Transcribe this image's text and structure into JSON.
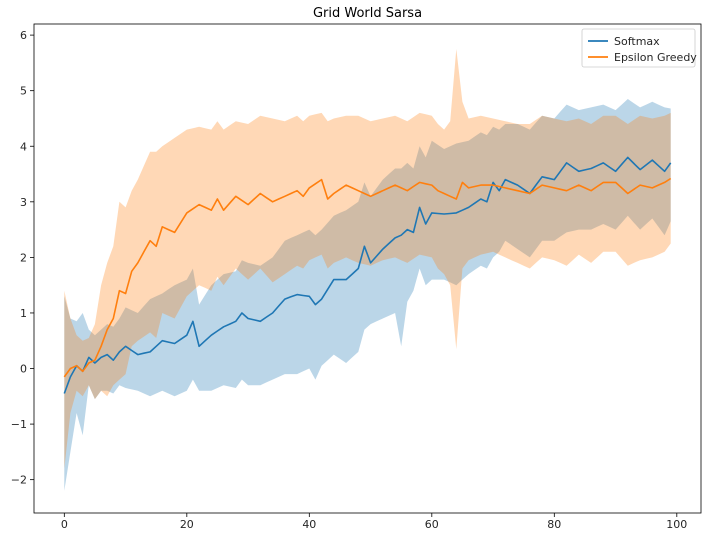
{
  "chart_data": {
    "type": "line",
    "title": "Grid World Sarsa",
    "xlabel": "",
    "ylabel": "",
    "xlim": [
      -4.95,
      103.95
    ],
    "ylim": [
      -2.6,
      6.2
    ],
    "xticks": [
      0,
      20,
      40,
      60,
      80,
      100
    ],
    "xtick_labels": [
      "0",
      "20",
      "40",
      "60",
      "80",
      "100"
    ],
    "yticks": [
      -2,
      -1,
      0,
      1,
      2,
      3,
      4,
      5,
      6
    ],
    "ytick_labels": [
      "−2",
      "−1",
      "0",
      "1",
      "2",
      "3",
      "4",
      "5",
      "6"
    ],
    "grid": false,
    "legend": "top-right",
    "series": [
      {
        "name": "Softmax",
        "color": "#1f77b4",
        "band_alpha": 0.3,
        "anchors": [
          [
            0,
            -0.45,
            1.3,
            -2.2
          ],
          [
            1,
            -0.15,
            0.9,
            -1.5
          ],
          [
            2,
            0.05,
            0.85,
            -0.8
          ],
          [
            3,
            -0.05,
            1.0,
            -1.2
          ],
          [
            4,
            0.2,
            0.7,
            -0.3
          ],
          [
            5,
            0.1,
            0.6,
            -0.55
          ],
          [
            6,
            0.2,
            0.7,
            -0.4
          ],
          [
            7,
            0.25,
            0.8,
            -0.4
          ],
          [
            8,
            0.15,
            0.75,
            -0.45
          ],
          [
            9,
            0.3,
            0.9,
            -0.3
          ],
          [
            10,
            0.4,
            1.1,
            -0.35
          ],
          [
            12,
            0.25,
            1.0,
            -0.4
          ],
          [
            14,
            0.3,
            1.25,
            -0.5
          ],
          [
            16,
            0.5,
            1.35,
            -0.4
          ],
          [
            18,
            0.45,
            1.5,
            -0.5
          ],
          [
            20,
            0.6,
            1.6,
            -0.4
          ],
          [
            21,
            0.85,
            1.8,
            -0.2
          ],
          [
            22,
            0.4,
            1.15,
            -0.4
          ],
          [
            24,
            0.6,
            1.5,
            -0.4
          ],
          [
            26,
            0.75,
            1.7,
            -0.3
          ],
          [
            28,
            0.85,
            1.75,
            -0.35
          ],
          [
            29,
            1.0,
            1.95,
            -0.2
          ],
          [
            30,
            0.9,
            1.9,
            -0.3
          ],
          [
            32,
            0.85,
            1.85,
            -0.3
          ],
          [
            34,
            1.0,
            2.0,
            -0.2
          ],
          [
            36,
            1.25,
            2.3,
            -0.1
          ],
          [
            38,
            1.33,
            2.4,
            -0.1
          ],
          [
            40,
            1.3,
            2.5,
            0.0
          ],
          [
            41,
            1.15,
            2.4,
            -0.2
          ],
          [
            42,
            1.25,
            2.5,
            0.05
          ],
          [
            44,
            1.6,
            2.75,
            0.25
          ],
          [
            46,
            1.6,
            2.85,
            0.1
          ],
          [
            48,
            1.8,
            3.0,
            0.3
          ],
          [
            49,
            2.2,
            3.35,
            0.7
          ],
          [
            50,
            1.9,
            3.1,
            0.8
          ],
          [
            52,
            2.15,
            3.4,
            0.9
          ],
          [
            54,
            2.35,
            3.6,
            1.0
          ],
          [
            55,
            2.4,
            3.6,
            0.4
          ],
          [
            56,
            2.5,
            3.7,
            1.2
          ],
          [
            57,
            2.45,
            3.6,
            1.4
          ],
          [
            58,
            2.9,
            4.0,
            1.8
          ],
          [
            59,
            2.6,
            3.8,
            1.5
          ],
          [
            60,
            2.8,
            4.1,
            1.6
          ],
          [
            62,
            2.78,
            3.95,
            1.6
          ],
          [
            64,
            2.8,
            4.05,
            1.5
          ],
          [
            66,
            2.9,
            4.1,
            1.7
          ],
          [
            68,
            3.05,
            4.25,
            1.85
          ],
          [
            69,
            3.0,
            4.2,
            1.8
          ],
          [
            70,
            3.35,
            4.35,
            2.0
          ],
          [
            71,
            3.2,
            4.3,
            2.1
          ],
          [
            72,
            3.4,
            4.4,
            2.3
          ],
          [
            74,
            3.3,
            4.4,
            2.15
          ],
          [
            76,
            3.15,
            4.3,
            2.0
          ],
          [
            78,
            3.45,
            4.55,
            2.3
          ],
          [
            80,
            3.4,
            4.5,
            2.3
          ],
          [
            82,
            3.7,
            4.75,
            2.45
          ],
          [
            84,
            3.55,
            4.65,
            2.5
          ],
          [
            86,
            3.6,
            4.7,
            2.5
          ],
          [
            88,
            3.7,
            4.75,
            2.6
          ],
          [
            90,
            3.55,
            4.65,
            2.5
          ],
          [
            92,
            3.8,
            4.85,
            2.75
          ],
          [
            94,
            3.58,
            4.7,
            2.5
          ],
          [
            96,
            3.75,
            4.8,
            2.7
          ],
          [
            98,
            3.55,
            4.7,
            2.4
          ],
          [
            99,
            3.7,
            4.68,
            2.65
          ]
        ]
      },
      {
        "name": "Epsilon Greedy",
        "color": "#ff7f0e",
        "band_alpha": 0.3,
        "anchors": [
          [
            0,
            -0.15,
            1.4,
            -1.8
          ],
          [
            1,
            0.0,
            0.9,
            -0.8
          ],
          [
            2,
            0.05,
            0.6,
            -0.4
          ],
          [
            3,
            -0.05,
            0.5,
            -0.5
          ],
          [
            4,
            0.1,
            0.55,
            -0.3
          ],
          [
            5,
            0.15,
            0.8,
            -0.55
          ],
          [
            6,
            0.4,
            1.5,
            -0.4
          ],
          [
            7,
            0.7,
            1.9,
            -0.5
          ],
          [
            8,
            0.9,
            2.2,
            -0.3
          ],
          [
            9,
            1.4,
            3.0,
            -0.2
          ],
          [
            10,
            1.35,
            2.9,
            -0.1
          ],
          [
            11,
            1.75,
            3.2,
            0.4
          ],
          [
            12,
            1.9,
            3.4,
            0.5
          ],
          [
            14,
            2.3,
            3.9,
            0.65
          ],
          [
            15,
            2.2,
            3.9,
            0.55
          ],
          [
            16,
            2.55,
            4.0,
            1.0
          ],
          [
            18,
            2.45,
            4.15,
            0.9
          ],
          [
            20,
            2.8,
            4.3,
            1.3
          ],
          [
            22,
            2.95,
            4.35,
            1.5
          ],
          [
            24,
            2.85,
            4.3,
            1.4
          ],
          [
            25,
            3.05,
            4.45,
            1.65
          ],
          [
            26,
            2.85,
            4.3,
            1.5
          ],
          [
            28,
            3.1,
            4.45,
            1.8
          ],
          [
            30,
            2.95,
            4.4,
            1.6
          ],
          [
            32,
            3.15,
            4.55,
            1.8
          ],
          [
            34,
            3.0,
            4.5,
            1.55
          ],
          [
            36,
            3.1,
            4.45,
            1.7
          ],
          [
            38,
            3.2,
            4.55,
            1.85
          ],
          [
            39,
            3.1,
            4.45,
            1.8
          ],
          [
            40,
            3.25,
            4.55,
            1.95
          ],
          [
            42,
            3.4,
            4.6,
            2.05
          ],
          [
            43,
            3.05,
            4.45,
            1.8
          ],
          [
            44,
            3.15,
            4.5,
            1.9
          ],
          [
            46,
            3.3,
            4.55,
            2.0
          ],
          [
            48,
            3.2,
            4.55,
            1.9
          ],
          [
            50,
            3.1,
            4.45,
            1.85
          ],
          [
            52,
            3.2,
            4.5,
            1.95
          ],
          [
            54,
            3.3,
            4.55,
            2.0
          ],
          [
            56,
            3.2,
            4.45,
            1.9
          ],
          [
            58,
            3.35,
            4.6,
            2.05
          ],
          [
            60,
            3.3,
            4.55,
            2.0
          ],
          [
            61,
            3.2,
            4.4,
            1.8
          ],
          [
            62,
            3.15,
            4.3,
            1.7
          ],
          [
            63,
            3.1,
            4.45,
            1.5
          ],
          [
            64,
            3.05,
            5.75,
            0.35
          ],
          [
            65,
            3.35,
            4.8,
            1.8
          ],
          [
            66,
            3.25,
            4.5,
            1.95
          ],
          [
            68,
            3.3,
            4.55,
            2.05
          ],
          [
            70,
            3.3,
            4.5,
            2.1
          ],
          [
            72,
            3.25,
            4.45,
            2.0
          ],
          [
            74,
            3.2,
            4.4,
            1.9
          ],
          [
            76,
            3.15,
            4.4,
            1.8
          ],
          [
            78,
            3.3,
            4.55,
            2.0
          ],
          [
            80,
            3.25,
            4.5,
            1.95
          ],
          [
            82,
            3.2,
            4.45,
            1.85
          ],
          [
            84,
            3.3,
            4.5,
            2.05
          ],
          [
            86,
            3.2,
            4.4,
            1.9
          ],
          [
            88,
            3.35,
            4.55,
            2.1
          ],
          [
            90,
            3.35,
            4.55,
            2.1
          ],
          [
            92,
            3.15,
            4.4,
            1.85
          ],
          [
            94,
            3.3,
            4.55,
            1.95
          ],
          [
            96,
            3.25,
            4.5,
            2.0
          ],
          [
            98,
            3.35,
            4.55,
            2.1
          ],
          [
            99,
            3.42,
            4.6,
            2.25
          ]
        ]
      }
    ]
  }
}
